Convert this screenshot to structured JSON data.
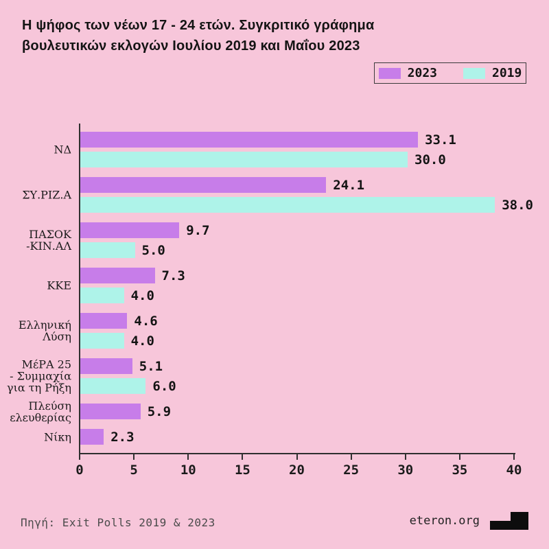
{
  "title": {
    "full": "Η ψήφος των νέων 17 - 24 ετών. Συγκριτικό γράφημα βουλευτικών εκλογών Ιουλίου 2019 και Μαΐου 2023",
    "line1": "Η ψήφος των νέων 17 - 24 ετών. Συγκριτικό γράφημα",
    "line2": "βουλευτικών εκλογών Ιουλίου 2019 και Μαΐου 2023"
  },
  "legend": {
    "items": [
      {
        "label": "2023",
        "color": "#c77de9"
      },
      {
        "label": "2019",
        "color": "#aef3e9"
      }
    ]
  },
  "chart_data": {
    "type": "bar",
    "orientation": "horizontal",
    "title": "Η ψήφος των νέων 17 - 24 ετών. Συγκριτικό γράφημα βουλευτικών εκλογών Ιουλίου 2019 και Μαΐου 2023",
    "categories": [
      "ΝΔ",
      "ΣΥ.ΡΙΖ.Α",
      "ΠΑΣΟΚ -ΚΙΝ.ΑΛ",
      "ΚΚΕ",
      "Ελληνική Λύση",
      "ΜέΡΑ 25 - Συμμαχία για τη Ρήξη",
      "Πλεύση ελευθερίας",
      "Νίκη"
    ],
    "categories_display": [
      [
        "ΝΔ"
      ],
      [
        "ΣΥ.ΡΙΖ.Α"
      ],
      [
        "ΠΑΣΟΚ",
        "-ΚΙΝ.ΑΛ"
      ],
      [
        "ΚΚΕ"
      ],
      [
        "Ελληνική",
        "Λύση"
      ],
      [
        "ΜέΡΑ 25",
        "- Συμμαχία",
        "για τη Ρήξη"
      ],
      [
        "Πλεύση",
        "ελευθερίας"
      ],
      [
        "Νίκη"
      ]
    ],
    "series": [
      {
        "name": "2023",
        "color": "#c77de9",
        "values": [
          33.1,
          24.1,
          9.7,
          7.3,
          4.6,
          5.1,
          5.9,
          2.3
        ],
        "labels": [
          "33.1",
          "24.1",
          "9.7",
          "7.3",
          "4.6",
          "5.1",
          "5.9",
          "2.3"
        ]
      },
      {
        "name": "2019",
        "color": "#aef3e9",
        "values": [
          30.0,
          38.0,
          5.0,
          4.0,
          4.0,
          6.0,
          null,
          null
        ],
        "labels": [
          "30.0",
          "38.0",
          "5.0",
          "4.0",
          "4.0",
          "6.0",
          null,
          null
        ]
      }
    ],
    "xlim": [
      0,
      40
    ],
    "x_ticks": [
      "0",
      "5",
      "10",
      "15",
      "20",
      "25",
      "30",
      "35",
      "40"
    ],
    "grid": false,
    "legend_position": "top-right"
  },
  "colors": {
    "background": "#f7c6da",
    "bar_2023": "#c77de9",
    "bar_2019": "#aef3e9",
    "axis": "#2f2f2f",
    "text": "#141414",
    "footer_text": "#4b4b4b",
    "logo": "#0d0d0d"
  },
  "footer": {
    "source": "Πηγή: Exit Polls 2019 & 2023",
    "site": "eteron.org"
  }
}
